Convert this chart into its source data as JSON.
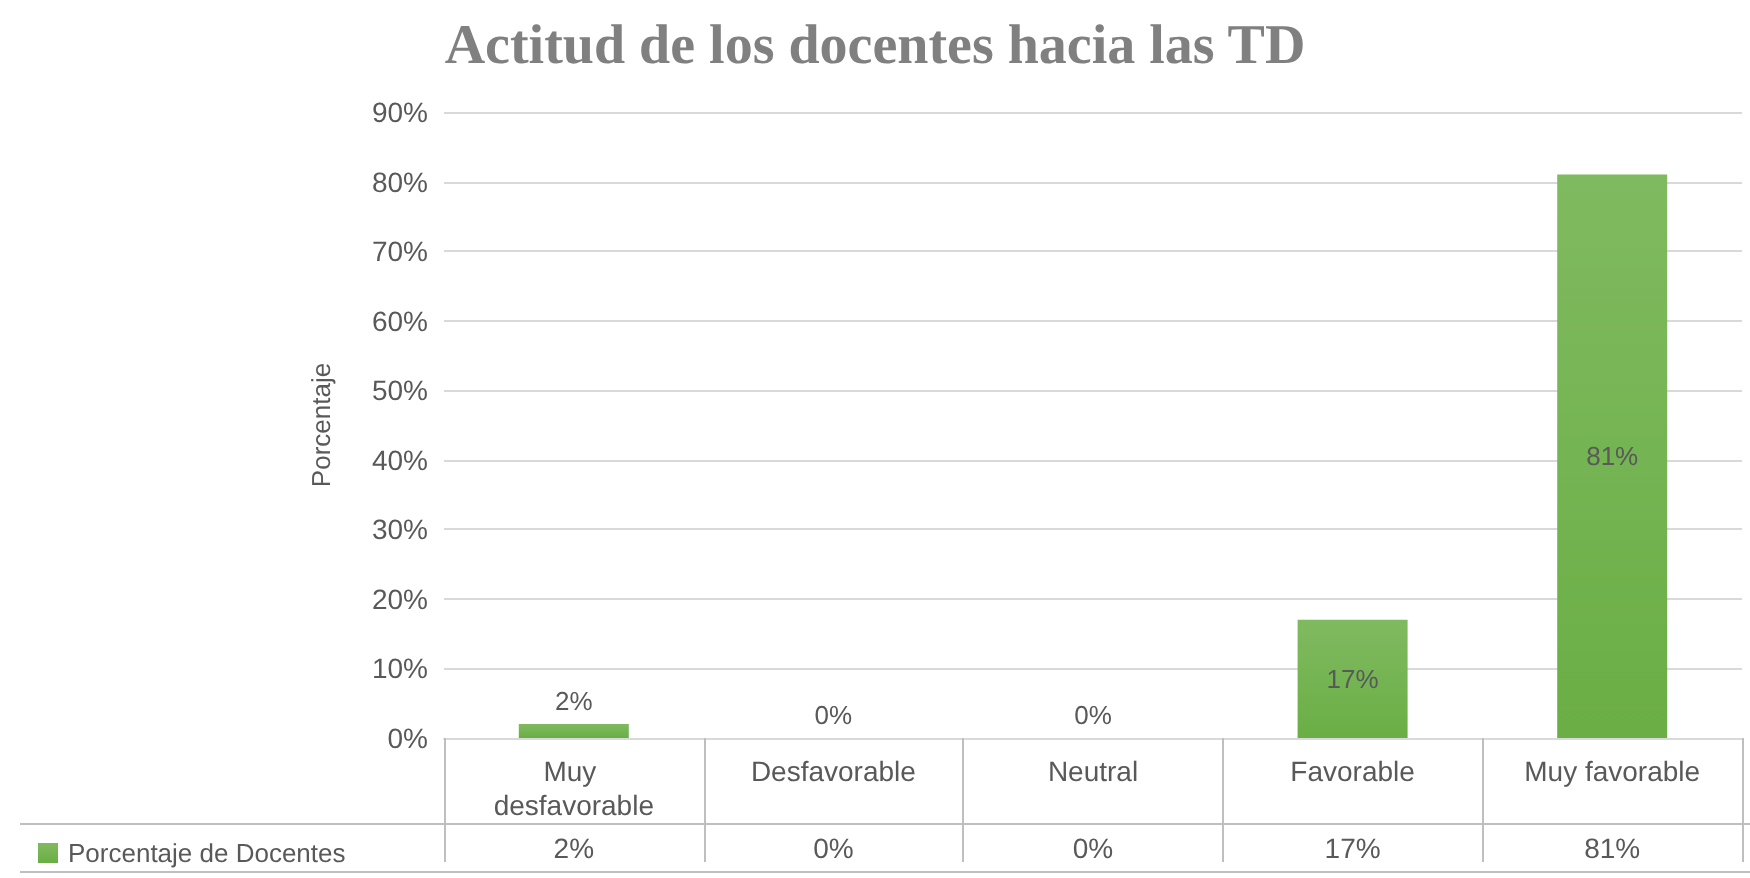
{
  "chart_data": {
    "type": "bar",
    "title": "Actitud de los docentes hacia las TD",
    "ylabel": "Porcentaje",
    "categories": [
      "Muy desfavorable",
      "Desfavorable",
      "Neutral",
      "Favorable",
      "Muy favorable"
    ],
    "series": [
      {
        "name": "Porcentaje de Docentes",
        "color": "#6aae45",
        "values": [
          2,
          0,
          0,
          17,
          81
        ],
        "value_labels": [
          "2%",
          "0%",
          "0%",
          "17%",
          "81%"
        ]
      }
    ],
    "ylim": [
      0,
      90
    ],
    "yticks": [
      {
        "value": 0,
        "label": "0%"
      },
      {
        "value": 10,
        "label": "10%"
      },
      {
        "value": 20,
        "label": "20%"
      },
      {
        "value": 30,
        "label": "30%"
      },
      {
        "value": 40,
        "label": "40%"
      },
      {
        "value": 50,
        "label": "50%"
      },
      {
        "value": 60,
        "label": "60%"
      },
      {
        "value": 70,
        "label": "70%"
      },
      {
        "value": 80,
        "label": "80%"
      },
      {
        "value": 90,
        "label": "90%"
      }
    ],
    "grid": "y",
    "legend": "bottom left"
  }
}
